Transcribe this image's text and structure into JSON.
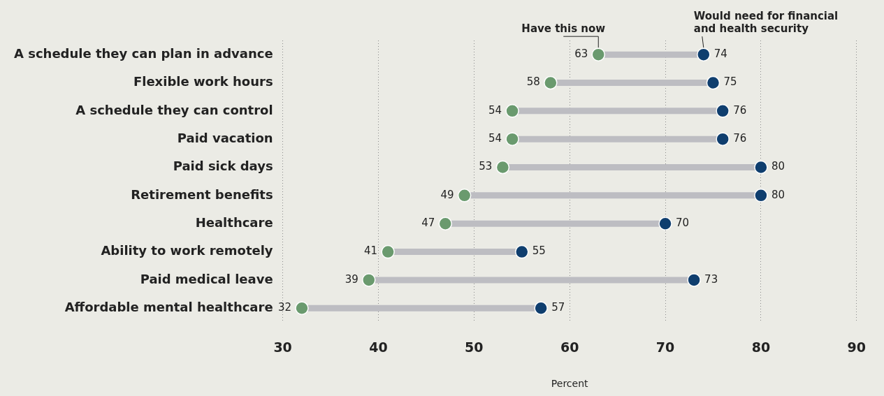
{
  "chart_data": {
    "type": "scatter",
    "orientation": "horizontal",
    "xlabel": "Percent",
    "categories": [
      "A schedule they can plan in advance",
      "Flexible work hours",
      "A schedule they can control",
      "Paid vacation",
      "Paid sick days",
      "Retirement benefits",
      "Healthcare",
      "Ability to work remotely",
      "Paid medical leave",
      "Affordable mental healthcare"
    ],
    "series": [
      {
        "name": "Have this now",
        "color": "#6a9a6e",
        "values": [
          63,
          58,
          54,
          54,
          53,
          49,
          47,
          41,
          39,
          32
        ]
      },
      {
        "name": "Would need for financial and health security",
        "color": "#0f3e6e",
        "values": [
          74,
          75,
          76,
          76,
          80,
          80,
          70,
          55,
          73,
          57
        ]
      }
    ],
    "xlim": [
      30,
      90
    ],
    "xticks": [
      30,
      40,
      50,
      60,
      70,
      80,
      90
    ],
    "grid": "x",
    "legend": false,
    "data_labels": true,
    "marker": "circle"
  }
}
